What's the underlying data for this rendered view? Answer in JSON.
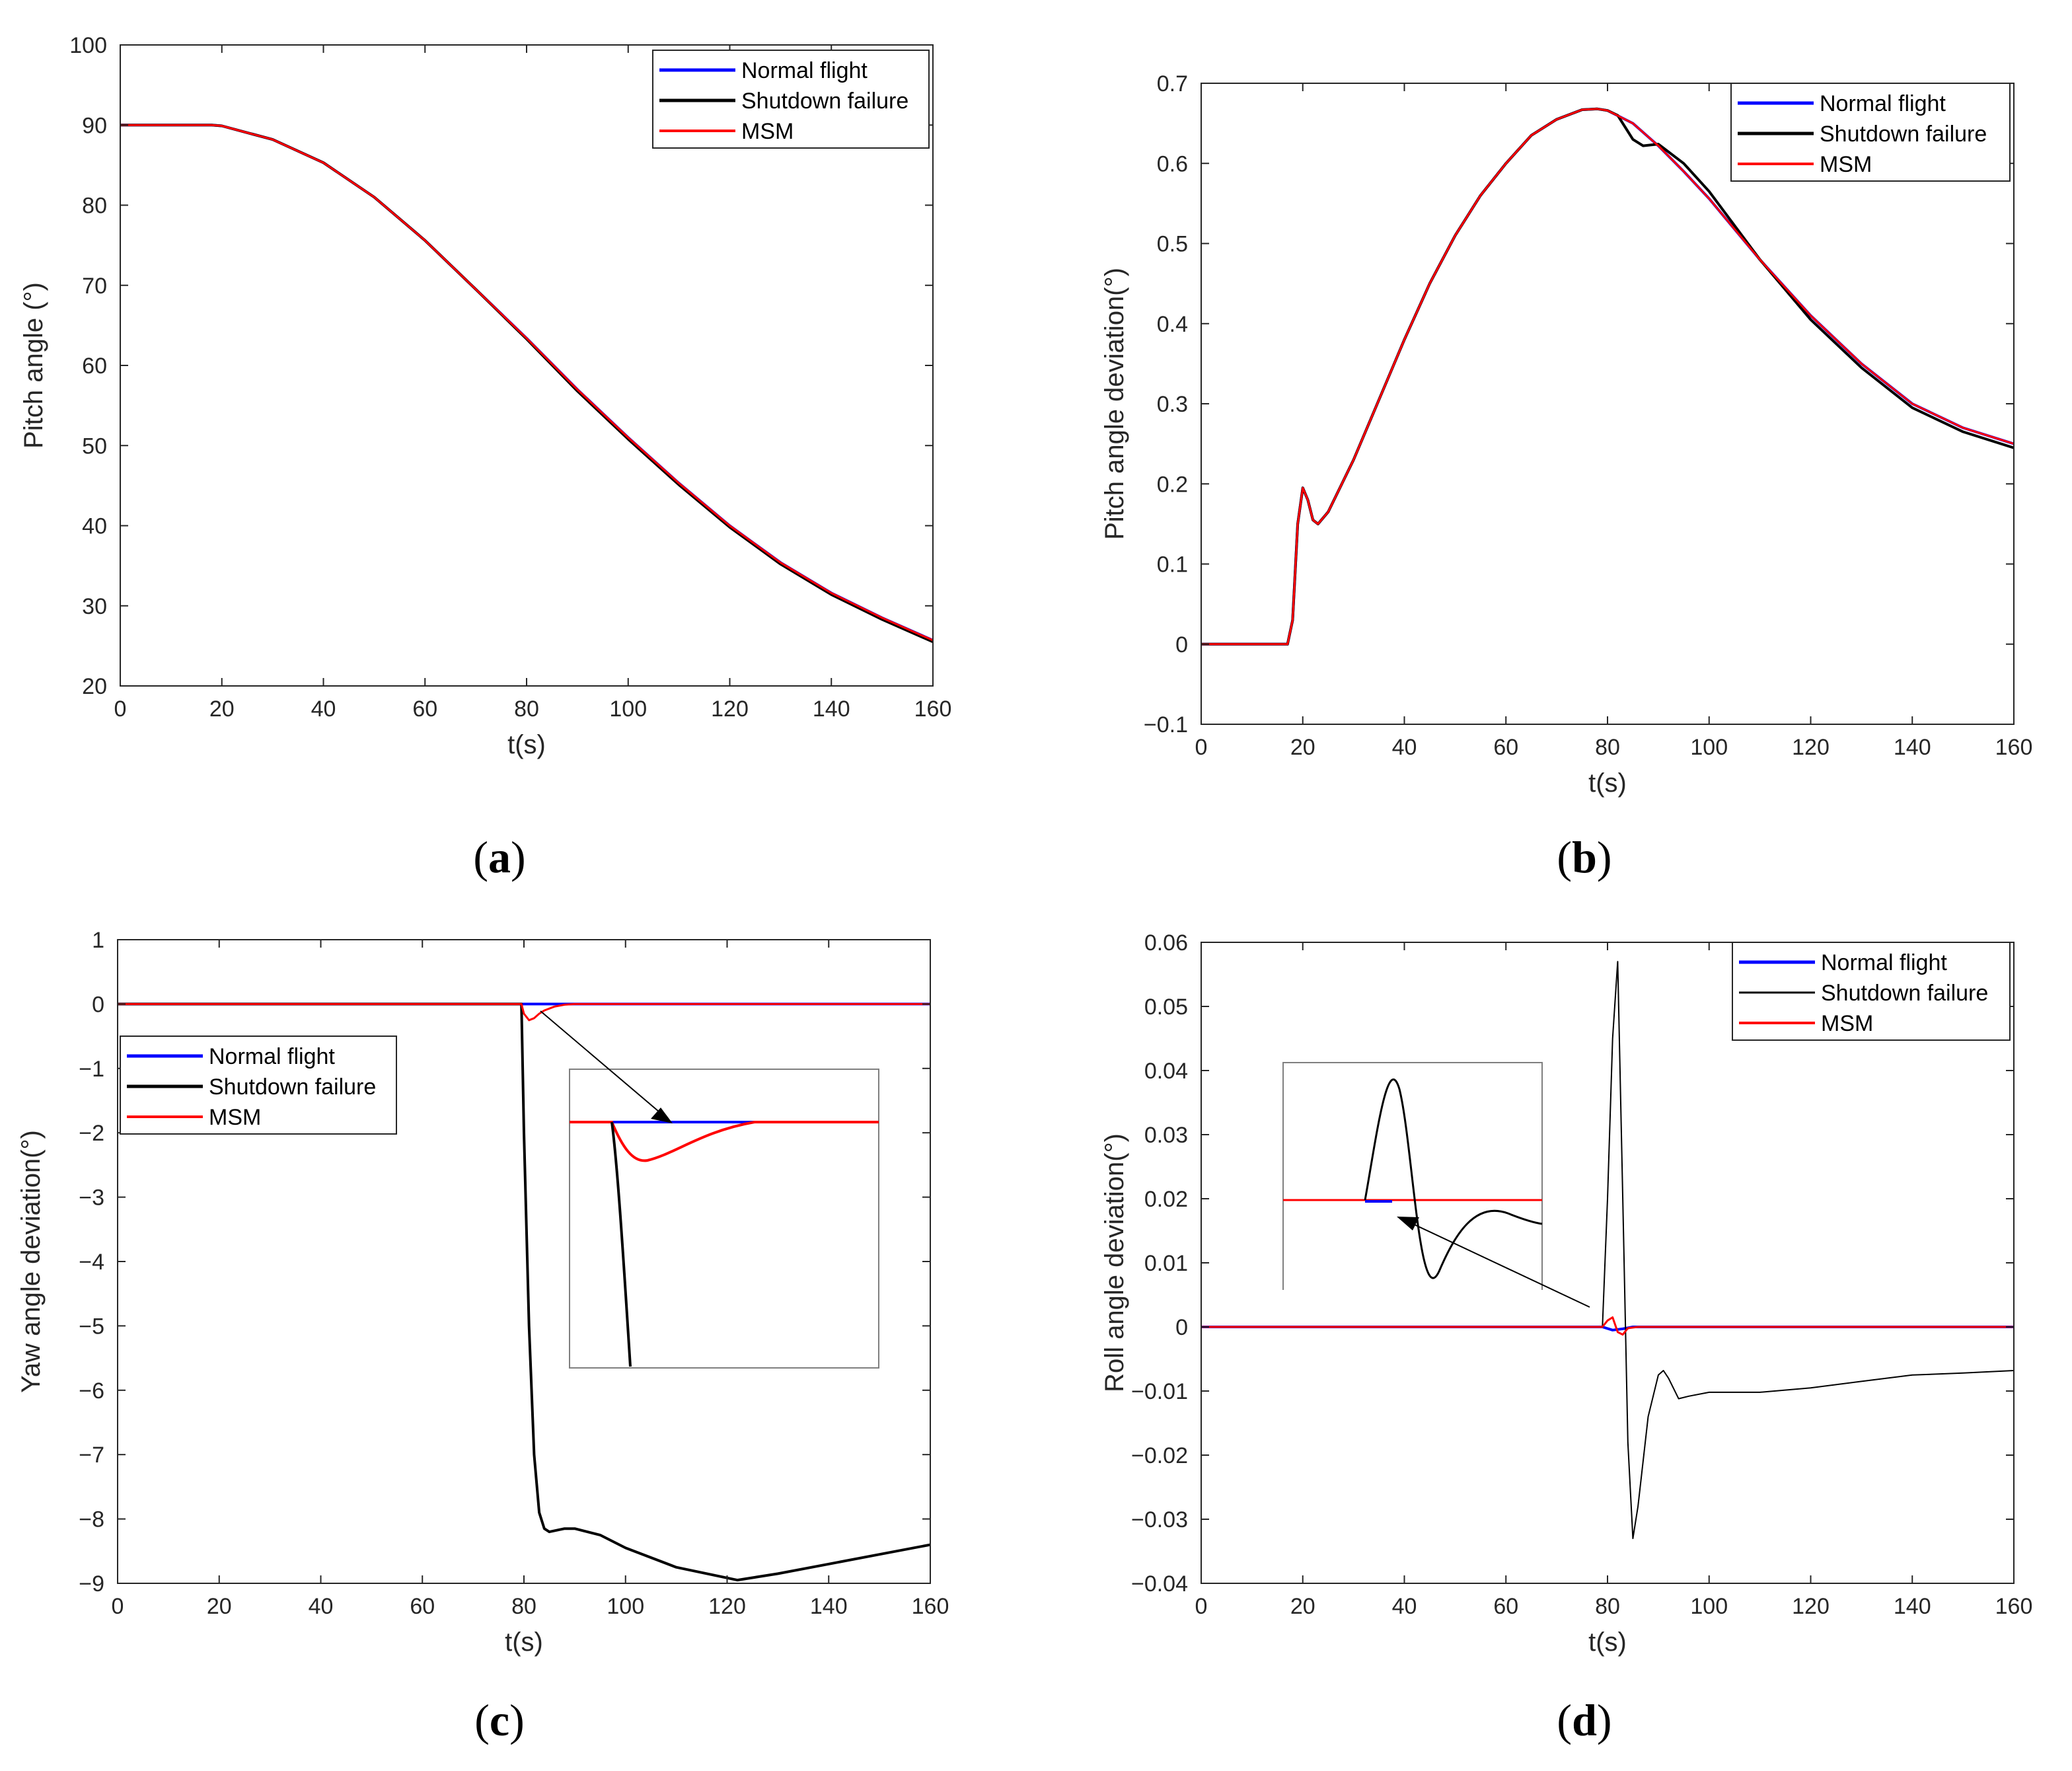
{
  "figure": {
    "panels": [
      {
        "id": "a",
        "label": "a"
      },
      {
        "id": "b",
        "label": "b"
      },
      {
        "id": "c",
        "label": "c"
      },
      {
        "id": "d",
        "label": "d"
      }
    ]
  },
  "colors": {
    "normal": "#0000ff",
    "shutdown": "#000000",
    "msm": "#ff0000",
    "axis": "#262626",
    "magenta_overlap": "#b0307a"
  },
  "chart_data": [
    {
      "id": "a",
      "type": "line",
      "xlabel": "t(s)",
      "ylabel": "Pitch angle (°)",
      "xlim": [
        0,
        160
      ],
      "ylim": [
        20,
        100
      ],
      "xticks": [
        0,
        20,
        40,
        60,
        80,
        100,
        120,
        140,
        160
      ],
      "yticks": [
        20,
        30,
        40,
        50,
        60,
        70,
        80,
        90,
        100
      ],
      "legend_position": "top-right",
      "series": [
        {
          "name": "Normal flight",
          "color": "#0000ff",
          "width": 4,
          "x": [
            0,
            18,
            20,
            30,
            40,
            50,
            60,
            70,
            80,
            90,
            100,
            110,
            120,
            130,
            140,
            150,
            160
          ],
          "y": [
            90,
            90,
            89.9,
            88.2,
            85.3,
            81.0,
            75.6,
            69.5,
            63.4,
            57.0,
            51.0,
            45.3,
            40.0,
            35.4,
            31.6,
            28.5,
            25.7
          ]
        },
        {
          "name": "Shutdown failure",
          "color": "#000000",
          "width": 4,
          "x": [
            0,
            18,
            20,
            30,
            40,
            50,
            60,
            70,
            80,
            90,
            100,
            110,
            120,
            130,
            140,
            150,
            160
          ],
          "y": [
            90,
            90,
            89.9,
            88.2,
            85.3,
            81.0,
            75.6,
            69.5,
            63.3,
            56.8,
            50.8,
            45.1,
            39.8,
            35.2,
            31.4,
            28.3,
            25.5
          ]
        },
        {
          "name": "MSM",
          "color": "#ff0000",
          "width": 3,
          "x": [
            0,
            18,
            20,
            30,
            40,
            50,
            60,
            70,
            80,
            90,
            100,
            110,
            120,
            130,
            140,
            150,
            160
          ],
          "y": [
            90,
            90,
            89.9,
            88.2,
            85.3,
            81.0,
            75.6,
            69.5,
            63.4,
            57.0,
            51.0,
            45.3,
            40.0,
            35.4,
            31.6,
            28.5,
            25.7
          ]
        }
      ]
    },
    {
      "id": "b",
      "type": "line",
      "xlabel": "t(s)",
      "ylabel": "Pitch angle deviation(°)",
      "xlim": [
        0,
        160
      ],
      "ylim": [
        -0.1,
        0.7
      ],
      "xticks": [
        0,
        20,
        40,
        60,
        80,
        100,
        120,
        140,
        160
      ],
      "yticks": [
        -0.1,
        0,
        0.1,
        0.2,
        0.3,
        0.4,
        0.5,
        0.6,
        0.7
      ],
      "legend_position": "top-right",
      "series": [
        {
          "name": "Normal flight",
          "color": "#0000ff",
          "width": 4,
          "x": [
            0,
            17,
            18,
            19,
            20,
            21,
            22,
            23,
            25,
            30,
            35,
            40,
            45,
            50,
            55,
            60,
            65,
            70,
            75,
            78,
            80,
            85,
            90,
            95,
            100,
            110,
            120,
            130,
            140,
            150,
            160
          ],
          "y": [
            0,
            0,
            0.03,
            0.15,
            0.195,
            0.18,
            0.155,
            0.15,
            0.165,
            0.23,
            0.305,
            0.38,
            0.45,
            0.51,
            0.56,
            0.6,
            0.635,
            0.655,
            0.667,
            0.668,
            0.666,
            0.65,
            0.622,
            0.59,
            0.556,
            0.48,
            0.41,
            0.35,
            0.3,
            0.27,
            0.25
          ]
        },
        {
          "name": "Shutdown failure",
          "color": "#000000",
          "width": 4,
          "x": [
            0,
            17,
            18,
            19,
            20,
            21,
            22,
            23,
            25,
            30,
            35,
            40,
            45,
            50,
            55,
            60,
            65,
            70,
            75,
            78,
            80,
            82,
            85,
            87,
            90,
            95,
            100,
            110,
            120,
            130,
            140,
            150,
            160
          ],
          "y": [
            0,
            0,
            0.03,
            0.15,
            0.195,
            0.18,
            0.155,
            0.15,
            0.165,
            0.23,
            0.305,
            0.38,
            0.45,
            0.51,
            0.56,
            0.6,
            0.635,
            0.655,
            0.667,
            0.668,
            0.666,
            0.66,
            0.63,
            0.622,
            0.624,
            0.6,
            0.565,
            0.48,
            0.405,
            0.345,
            0.295,
            0.265,
            0.245
          ]
        },
        {
          "name": "MSM",
          "color": "#ff0000",
          "width": 3,
          "x": [
            0,
            17,
            18,
            19,
            20,
            21,
            22,
            23,
            25,
            30,
            35,
            40,
            45,
            50,
            55,
            60,
            65,
            70,
            75,
            78,
            80,
            85,
            90,
            95,
            100,
            110,
            120,
            130,
            140,
            150,
            160
          ],
          "y": [
            0,
            0,
            0.03,
            0.15,
            0.195,
            0.18,
            0.155,
            0.15,
            0.165,
            0.23,
            0.305,
            0.38,
            0.45,
            0.51,
            0.56,
            0.6,
            0.635,
            0.655,
            0.667,
            0.668,
            0.666,
            0.65,
            0.622,
            0.59,
            0.556,
            0.48,
            0.41,
            0.35,
            0.3,
            0.27,
            0.25
          ]
        }
      ]
    },
    {
      "id": "c",
      "type": "line",
      "xlabel": "t(s)",
      "ylabel": "Yaw angle deviation(°)",
      "xlim": [
        0,
        160
      ],
      "ylim": [
        -9,
        1
      ],
      "xticks": [
        0,
        20,
        40,
        60,
        80,
        100,
        120,
        140,
        160
      ],
      "yticks": [
        -9,
        -8,
        -7,
        -6,
        -5,
        -4,
        -3,
        -2,
        -1,
        0,
        1
      ],
      "legend_position": "middle-left",
      "series": [
        {
          "name": "Normal flight",
          "color": "#0000ff",
          "width": 4,
          "x": [
            0,
            80,
            85,
            160
          ],
          "y": [
            0,
            0,
            0,
            0
          ]
        },
        {
          "name": "Shutdown failure",
          "color": "#000000",
          "width": 4,
          "x": [
            0,
            79.5,
            80,
            81,
            82,
            83,
            84,
            85,
            88,
            90,
            95,
            100,
            110,
            122,
            130,
            140,
            150,
            160
          ],
          "y": [
            0,
            0,
            -2,
            -5,
            -7,
            -7.9,
            -8.15,
            -8.2,
            -8.15,
            -8.15,
            -8.25,
            -8.45,
            -8.75,
            -8.95,
            -8.85,
            -8.7,
            -8.55,
            -8.4
          ]
        },
        {
          "name": "MSM",
          "color": "#ff0000",
          "width": 3,
          "x": [
            0,
            79.5,
            80,
            81,
            82,
            83,
            84,
            86,
            88,
            90,
            160
          ],
          "y": [
            0,
            0,
            -0.15,
            -0.25,
            -0.22,
            -0.15,
            -0.1,
            -0.04,
            -0.01,
            0,
            0
          ]
        }
      ]
    },
    {
      "id": "d",
      "type": "line",
      "xlabel": "t(s)",
      "ylabel": "Roll angle deviation(°)",
      "xlim": [
        0,
        160
      ],
      "ylim": [
        -0.04,
        0.06
      ],
      "xticks": [
        0,
        20,
        40,
        60,
        80,
        100,
        120,
        140,
        160
      ],
      "yticks": [
        -0.04,
        -0.03,
        -0.02,
        -0.01,
        0,
        0.01,
        0.02,
        0.03,
        0.04,
        0.05,
        0.06
      ],
      "legend_position": "top-right",
      "series": [
        {
          "name": "Normal flight",
          "color": "#0000ff",
          "width": 4,
          "x": [
            0,
            79,
            81,
            83,
            85,
            160
          ],
          "y": [
            0,
            0,
            -0.0005,
            -0.0003,
            0,
            0
          ]
        },
        {
          "name": "Shutdown failure",
          "color": "#000000",
          "width": 2,
          "x": [
            0,
            79,
            80,
            81,
            82,
            83,
            84,
            85,
            86,
            88,
            90,
            91,
            92,
            94,
            96,
            100,
            110,
            120,
            130,
            140,
            150,
            160
          ],
          "y": [
            0,
            0,
            0.02,
            0.045,
            0.057,
            0.02,
            -0.018,
            -0.033,
            -0.028,
            -0.014,
            -0.0075,
            -0.0068,
            -0.008,
            -0.0112,
            -0.0108,
            -0.0102,
            -0.0102,
            -0.0095,
            -0.0085,
            -0.0075,
            -0.0072,
            -0.0068
          ]
        },
        {
          "name": "MSM",
          "color": "#ff0000",
          "width": 3,
          "x": [
            0,
            79,
            80,
            81,
            82,
            83,
            84,
            86,
            160
          ],
          "y": [
            0,
            0,
            0.001,
            0.0015,
            -0.0008,
            -0.0012,
            -0.0002,
            0,
            0
          ]
        }
      ]
    }
  ]
}
